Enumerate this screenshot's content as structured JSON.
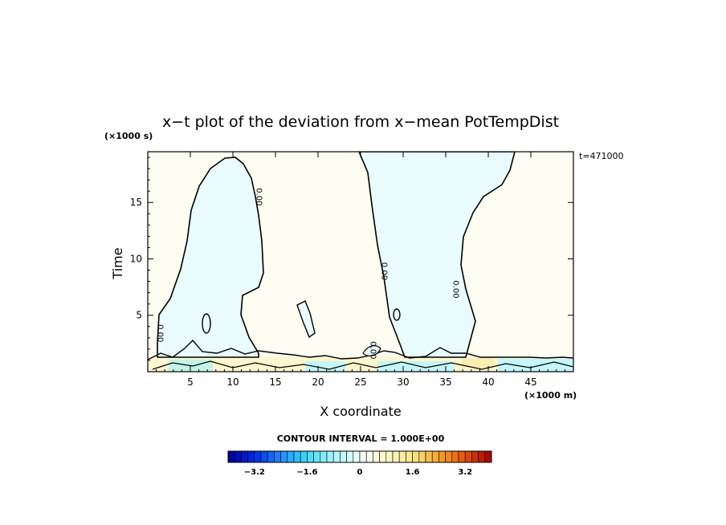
{
  "chart_data": {
    "type": "heatmap",
    "title": "x−t plot of the deviation from x−mean PotTempDist",
    "xlabel": "X coordinate",
    "ylabel": "Time",
    "x_unit_label": "(×1000 m)",
    "y_unit_label": "(×1000 s)",
    "time_label": "t=471000",
    "xlim": [
      0,
      50
    ],
    "ylim": [
      0,
      19.5
    ],
    "x_ticks": [
      5,
      10,
      15,
      20,
      25,
      30,
      35,
      40,
      45
    ],
    "y_ticks": [
      5,
      10,
      15
    ],
    "contour_interval_label": "CONTOUR INTERVAL = 1.000E+00",
    "colorbar": {
      "range": [
        -4,
        4
      ],
      "ticks": [
        -3.2,
        -1.6,
        0,
        1.6,
        3.2
      ],
      "tick_labels": [
        "−3.2",
        "−1.6",
        "0",
        "1.6",
        "3.2"
      ]
    },
    "zero_contour_label": "0.00",
    "contour_labels": [
      {
        "x": 1.2,
        "y": 3.4
      },
      {
        "x": 12.8,
        "y": 15.5
      },
      {
        "x": 27.5,
        "y": 8.9
      },
      {
        "x": 35.9,
        "y": 7.3
      },
      {
        "x": 26.2,
        "y": 1.9
      }
    ],
    "regions": [
      {
        "name": "cool-plume-1",
        "sign": "negative",
        "color": "#e9fbfc",
        "x_range": [
          1.5,
          13.5
        ],
        "y_range": [
          1.3,
          19.4
        ]
      },
      {
        "name": "cool-band-2",
        "sign": "negative",
        "color": "#e9fbfc",
        "x_range": [
          24.5,
          43
        ],
        "y_range": [
          1.3,
          19.5
        ]
      },
      {
        "name": "surface-layer",
        "sign": "mixed",
        "color": "#fdf6cf",
        "x_range": [
          0,
          50
        ],
        "y_range": [
          0,
          1.3
        ]
      }
    ],
    "background_color": "#fdfdf1",
    "colors": {
      "cool": "#e9fbfc",
      "warm_bg": "#fdfdf1",
      "warm_surface": "#fdf6cf",
      "cold_surface": "#9ff1f9"
    }
  }
}
